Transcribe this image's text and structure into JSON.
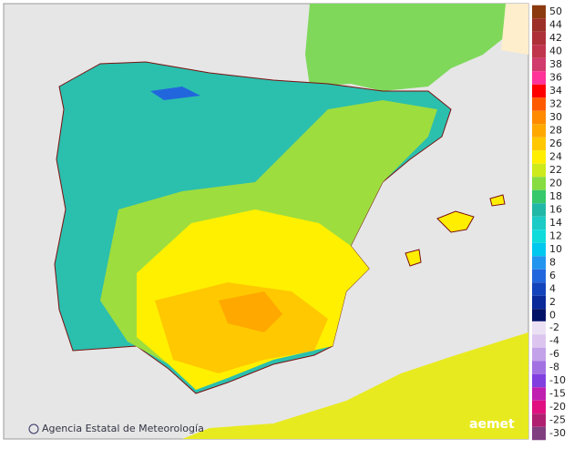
{
  "map": {
    "credit": "Agencia Estatal de Meteorología",
    "logo": "aemet",
    "legend": {
      "positive": [
        {
          "value": 50,
          "color": "#8b3a0f"
        },
        {
          "value": 44,
          "color": "#9c2f27"
        },
        {
          "value": 42,
          "color": "#ae3038"
        },
        {
          "value": 40,
          "color": "#c0344c"
        },
        {
          "value": 38,
          "color": "#d13a6c"
        },
        {
          "value": 36,
          "color": "#ff3399"
        },
        {
          "value": 34,
          "color": "#ff0000"
        },
        {
          "value": 32,
          "color": "#ff5a00"
        },
        {
          "value": 30,
          "color": "#ff8a00"
        },
        {
          "value": 28,
          "color": "#ffa800"
        },
        {
          "value": 26,
          "color": "#ffc800"
        },
        {
          "value": 24,
          "color": "#ffee00"
        },
        {
          "value": 22,
          "color": "#cdea1c"
        },
        {
          "value": 20,
          "color": "#86dc40"
        },
        {
          "value": 18,
          "color": "#36c86a"
        },
        {
          "value": 16,
          "color": "#22b8a8"
        },
        {
          "value": 14,
          "color": "#1ccbc6"
        },
        {
          "value": 12,
          "color": "#10dcdc"
        },
        {
          "value": 10,
          "color": "#00c8ee"
        },
        {
          "value": 8,
          "color": "#2296ee"
        },
        {
          "value": 6,
          "color": "#2266dd"
        },
        {
          "value": 4,
          "color": "#1444bb"
        },
        {
          "value": 2,
          "color": "#0a2a99"
        },
        {
          "value": 0,
          "color": "#001166"
        }
      ],
      "negative": [
        {
          "value": -2,
          "color": "#ece0f4"
        },
        {
          "value": -4,
          "color": "#dcc6f0"
        },
        {
          "value": -6,
          "color": "#c4a2ea"
        },
        {
          "value": -8,
          "color": "#a272e2"
        },
        {
          "value": -10,
          "color": "#8040e0"
        },
        {
          "value": -15,
          "color": "#c020b0"
        },
        {
          "value": -20,
          "color": "#e01080"
        },
        {
          "value": -25,
          "color": "#b02070"
        },
        {
          "value": -30,
          "color": "#804080"
        }
      ]
    }
  }
}
